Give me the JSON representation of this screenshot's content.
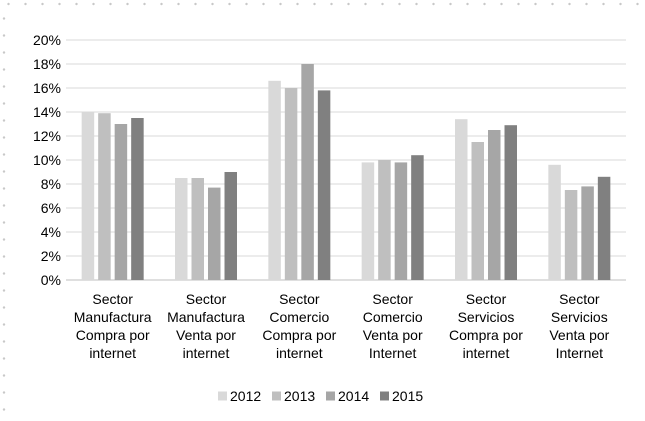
{
  "chart_data": {
    "type": "bar",
    "categories": [
      [
        "Sector",
        "Manufactura",
        "Compra por",
        "internet"
      ],
      [
        "Sector",
        "Manufactura",
        "Venta por",
        "internet"
      ],
      [
        "Sector",
        "Comercio",
        "Compra por",
        "internet"
      ],
      [
        "Sector",
        "Comercio",
        "Venta por",
        "Internet"
      ],
      [
        "Sector",
        "Servicios",
        "Compra por",
        "internet"
      ],
      [
        "Sector",
        "Servicios",
        "Venta por",
        "Internet"
      ]
    ],
    "series": [
      {
        "name": "2012",
        "color": "#d9d9d9",
        "values": [
          14.0,
          8.5,
          16.6,
          9.8,
          13.4,
          9.6
        ]
      },
      {
        "name": "2013",
        "color": "#bfbfbf",
        "values": [
          13.9,
          8.5,
          16.0,
          10.0,
          11.5,
          7.5
        ]
      },
      {
        "name": "2014",
        "color": "#a6a6a6",
        "values": [
          13.0,
          7.7,
          18.0,
          9.8,
          12.5,
          7.8
        ]
      },
      {
        "name": "2015",
        "color": "#808080",
        "values": [
          13.5,
          9.0,
          15.8,
          10.4,
          12.9,
          8.6
        ]
      }
    ],
    "ylim": [
      0,
      20
    ],
    "yticks": [
      "0%",
      "2%",
      "4%",
      "6%",
      "8%",
      "10%",
      "12%",
      "14%",
      "16%",
      "18%",
      "20%"
    ],
    "grid": true,
    "legend": "bottom",
    "title": "",
    "xlabel": "",
    "ylabel": ""
  }
}
